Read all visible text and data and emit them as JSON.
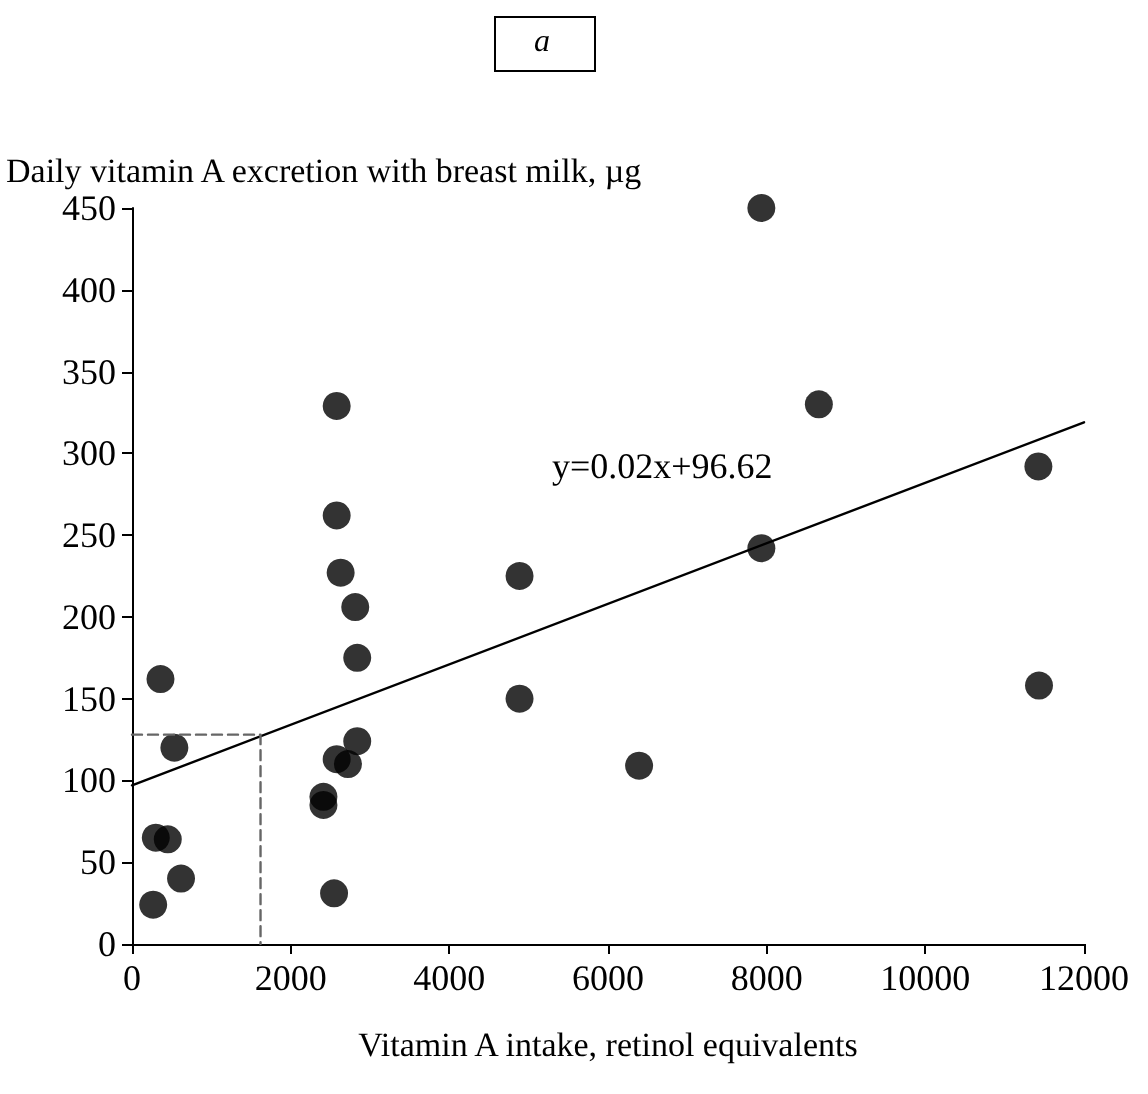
{
  "chart_data": {
    "type": "scatter",
    "title": "a",
    "ylabel": "Daily vitamin A excretion with breast milk, µg",
    "xlabel": "Vitamin A intake, retinol equivalents",
    "annotations": [
      "y=0.02x+96.62"
    ],
    "xlim": [
      0,
      12000
    ],
    "xticks": [
      0,
      2000,
      4000,
      6000,
      8000,
      10000,
      12000
    ],
    "ylim": [
      0,
      450
    ],
    "yticks": [
      0,
      50,
      100,
      150,
      200,
      250,
      300,
      350,
      400,
      450
    ],
    "grid": false,
    "marker": "circle",
    "series": [
      {
        "color": "#000000",
        "x": [
          267,
          300,
          451,
          618,
          359,
          534,
          2580,
          2580,
          2630,
          2814,
          2839,
          2839,
          2580,
          2722,
          2413,
          2413,
          2547,
          4885,
          4885,
          7933,
          8658,
          11425,
          7933,
          11433,
          6392
        ],
        "values": [
          24,
          65,
          64,
          40,
          162,
          120,
          329,
          262,
          227,
          206,
          175,
          124,
          113,
          110,
          90,
          85,
          31,
          225,
          150,
          450,
          330,
          292,
          242,
          158,
          109
        ]
      },
      {
        "type": "line",
        "color": "#000000",
        "line_style": "solid",
        "marker": "none",
        "x": [
          0,
          12000
        ],
        "values": [
          97,
          319
        ]
      },
      {
        "type": "line",
        "color": "#666666",
        "line_style": "dashed",
        "marker": "none",
        "x": [
          0,
          1620,
          1620
        ],
        "values": [
          128,
          128,
          0
        ]
      }
    ]
  }
}
